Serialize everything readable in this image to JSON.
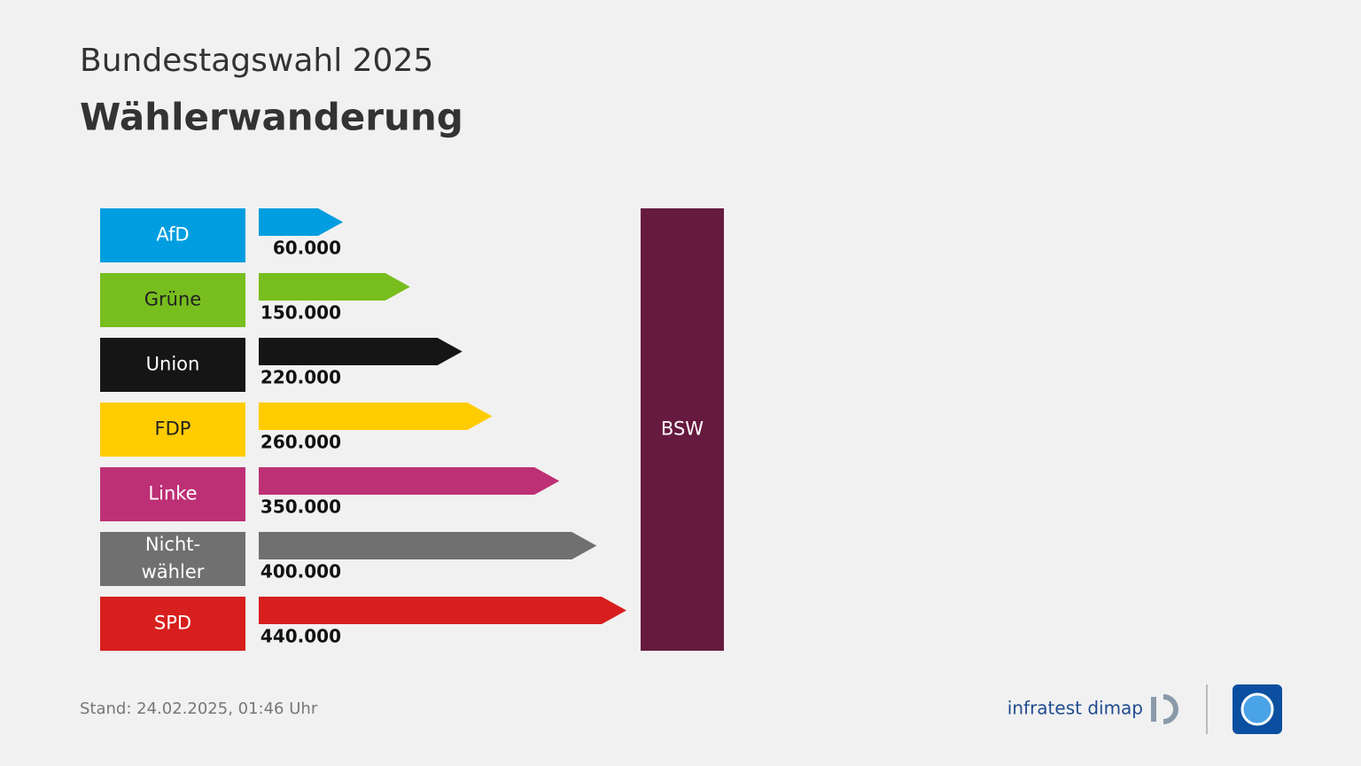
{
  "header": {
    "supertitle": "Bundestagswahl 2025",
    "title": "Wählerwanderung"
  },
  "chart_data": {
    "type": "arrow-bar",
    "categories": [
      "AfD",
      "Grüne",
      "Union",
      "FDP",
      "Linke",
      "Nicht-\nwähler",
      "SPD"
    ],
    "values": [
      60000,
      150000,
      220000,
      260000,
      350000,
      400000,
      440000
    ],
    "value_labels": [
      "60.000",
      "150.000",
      "220.000",
      "260.000",
      "350.000",
      "400.000",
      "440.000"
    ],
    "colors": [
      "#009ee0",
      "#78be1e",
      "#151515",
      "#ffcc00",
      "#be3075",
      "#707070",
      "#d71f1d"
    ],
    "target": "BSW",
    "target_color": "#661a3f"
  },
  "footer": {
    "stand": "Stand:  24.02.2025, 01:46 Uhr",
    "brand": "infratest dimap"
  }
}
